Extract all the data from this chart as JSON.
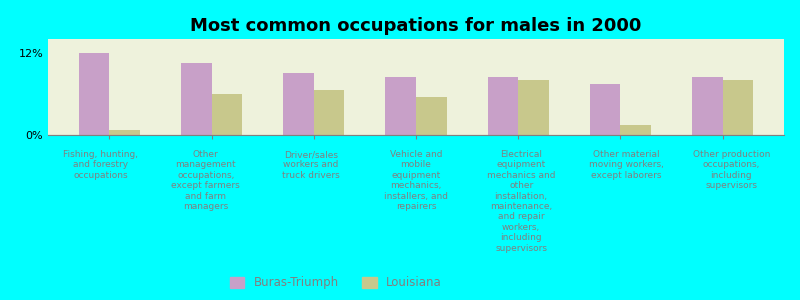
{
  "title": "Most common occupations for males in 2000",
  "background_color": "#00FFFF",
  "plot_background_color": "#EEF2DC",
  "categories": [
    "Fishing, hunting,\nand forestry\noccupations",
    "Other\nmanagement\noccupations,\nexcept farmers\nand farm\nmanagers",
    "Driver/sales\nworkers and\ntruck drivers",
    "Vehicle and\nmobile\nequipment\nmechanics,\ninstallers, and\nrepairers",
    "Electrical\nequipment\nmechanics and\nother\ninstallation,\nmaintenance,\nand repair\nworkers,\nincluding\nsupervisors",
    "Other material\nmoving workers,\nexcept laborers",
    "Other production\noccupations,\nincluding\nsupervisors"
  ],
  "buras_triumph": [
    12.0,
    10.5,
    9.0,
    8.5,
    8.5,
    7.5,
    8.5
  ],
  "louisiana": [
    0.8,
    6.0,
    6.5,
    5.5,
    8.0,
    1.5,
    8.0
  ],
  "buras_color": "#C8A0C8",
  "louisiana_color": "#C8C88C",
  "ylim": [
    0,
    14
  ],
  "yticks": [
    0,
    12
  ],
  "ytick_labels": [
    "0%",
    "12%"
  ],
  "bar_width": 0.3,
  "legend_labels": [
    "Buras-Triumph",
    "Louisiana"
  ],
  "title_fontsize": 13,
  "label_fontsize": 6.5,
  "tick_fontsize": 8
}
